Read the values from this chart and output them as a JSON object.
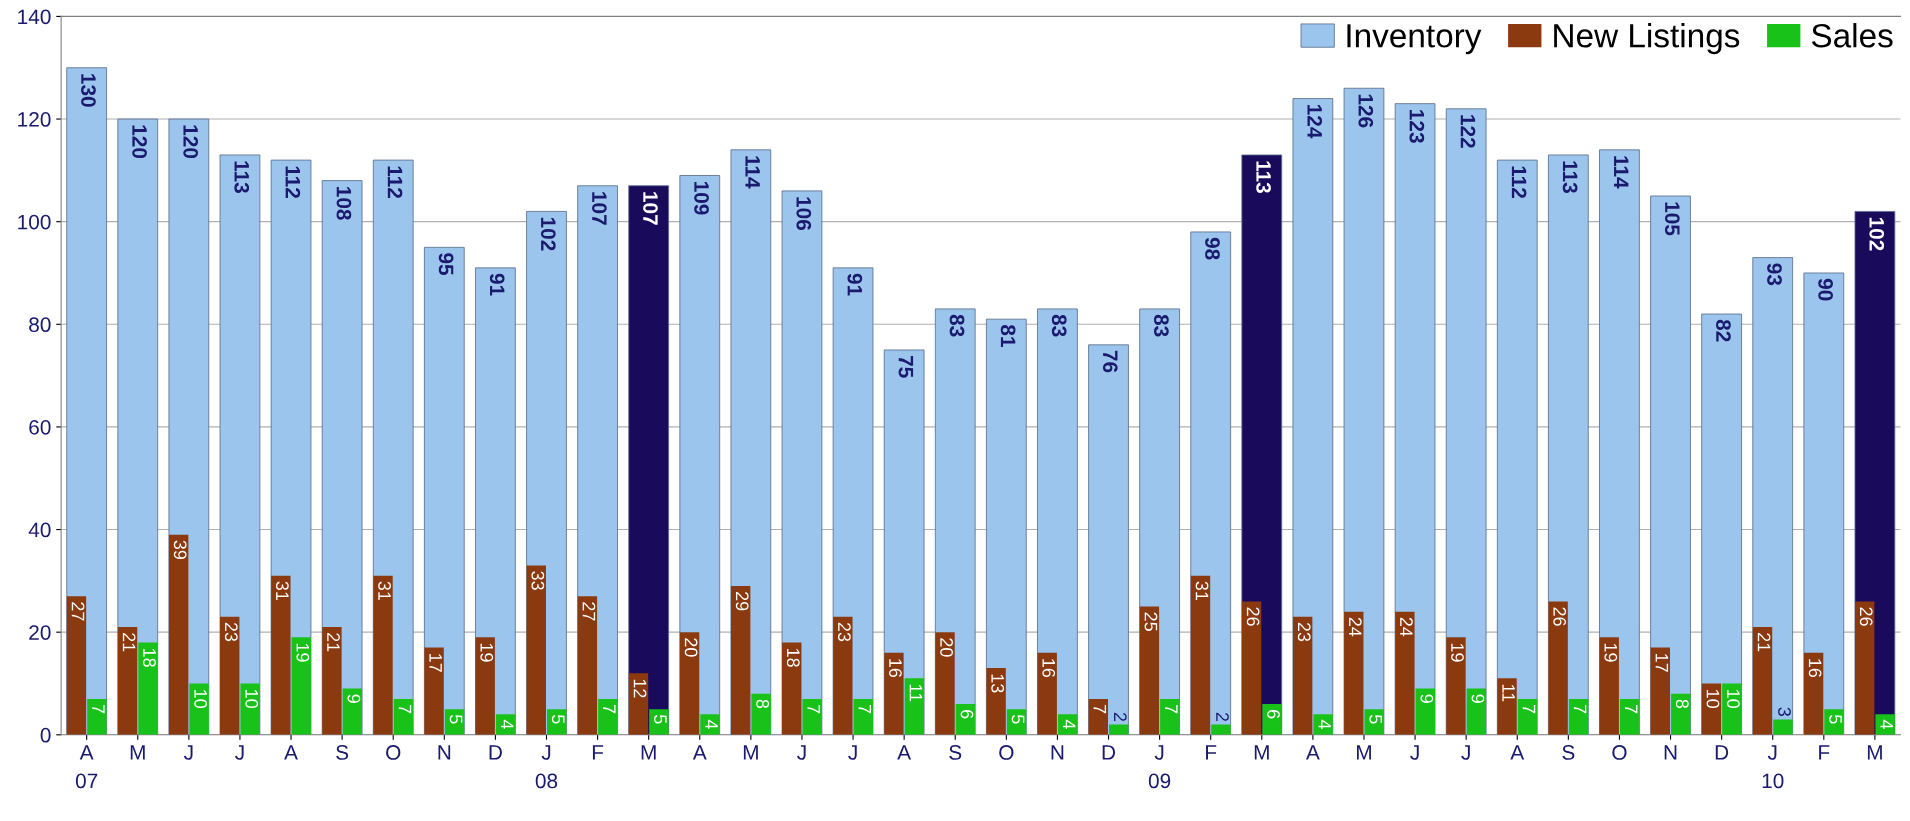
{
  "chart_data": {
    "type": "bar",
    "categories": [
      "A\n07",
      "M",
      "J",
      "J",
      "A",
      "S",
      "O",
      "N",
      "D",
      "J\n08",
      "F",
      "M",
      "A",
      "M",
      "J",
      "J",
      "A",
      "S",
      "O",
      "N",
      "D",
      "J\n09",
      "F",
      "M",
      "A",
      "M",
      "J",
      "J",
      "A",
      "S",
      "O",
      "N",
      "D",
      "J\n10",
      "F",
      "M"
    ],
    "series": [
      {
        "name": "Inventory",
        "color": "#9cc5ee",
        "colors": [
          "#9cc5ee",
          "#9cc5ee",
          "#9cc5ee",
          "#9cc5ee",
          "#9cc5ee",
          "#9cc5ee",
          "#9cc5ee",
          "#9cc5ee",
          "#9cc5ee",
          "#9cc5ee",
          "#9cc5ee",
          "#1a0a5c",
          "#9cc5ee",
          "#9cc5ee",
          "#9cc5ee",
          "#9cc5ee",
          "#9cc5ee",
          "#9cc5ee",
          "#9cc5ee",
          "#9cc5ee",
          "#9cc5ee",
          "#9cc5ee",
          "#9cc5ee",
          "#1a0a5c",
          "#9cc5ee",
          "#9cc5ee",
          "#9cc5ee",
          "#9cc5ee",
          "#9cc5ee",
          "#9cc5ee",
          "#9cc5ee",
          "#9cc5ee",
          "#9cc5ee",
          "#9cc5ee",
          "#9cc5ee",
          "#1a0a5c"
        ],
        "values": [
          130,
          120,
          120,
          113,
          112,
          108,
          112,
          95,
          91,
          102,
          107,
          107,
          109,
          114,
          106,
          91,
          75,
          83,
          81,
          83,
          76,
          83,
          98,
          113,
          124,
          126,
          123,
          122,
          112,
          113,
          114,
          105,
          82,
          93,
          90,
          102
        ]
      },
      {
        "name": "New Listings",
        "color": "#8b3a10",
        "values": [
          27,
          21,
          39,
          23,
          31,
          21,
          31,
          17,
          19,
          33,
          27,
          12,
          20,
          29,
          18,
          23,
          16,
          20,
          13,
          16,
          7,
          25,
          31,
          26,
          23,
          24,
          24,
          19,
          11,
          26,
          19,
          17,
          10,
          21,
          16,
          26
        ]
      },
      {
        "name": "Sales",
        "color": "#19c219",
        "values": [
          7,
          18,
          10,
          10,
          19,
          9,
          7,
          5,
          4,
          5,
          7,
          5,
          4,
          8,
          7,
          7,
          11,
          6,
          5,
          4,
          2,
          7,
          2,
          6,
          4,
          5,
          9,
          9,
          7,
          7,
          7,
          8,
          10,
          3,
          5,
          4
        ]
      }
    ],
    "ylim": [
      0,
      140
    ],
    "yticks": [
      0,
      20,
      40,
      60,
      80,
      100,
      120,
      140
    ],
    "grid": "y",
    "legend": "top right",
    "data_labels": true
  }
}
